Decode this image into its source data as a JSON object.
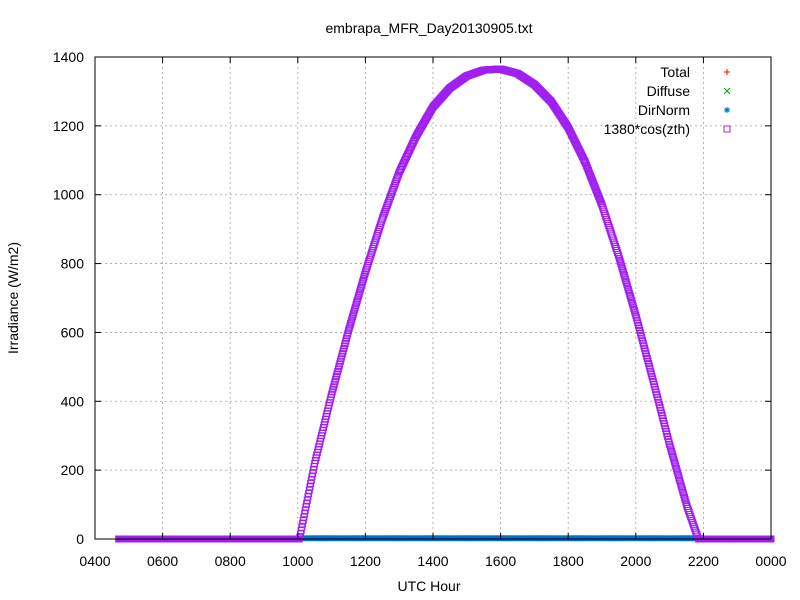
{
  "chart_data": {
    "type": "scatter",
    "title": "embrapa_MFR_Day20130905.txt",
    "xlabel": "UTC Hour",
    "ylabel": "Irradiance (W/m2)",
    "xlim": [
      4,
      24
    ],
    "ylim": [
      0,
      1400
    ],
    "x_ticks": [
      4,
      6,
      8,
      10,
      12,
      14,
      16,
      18,
      20,
      22,
      24
    ],
    "x_tick_labels": [
      "0400",
      "0600",
      "0800",
      "1000",
      "1200",
      "1400",
      "1600",
      "1800",
      "2000",
      "2200",
      "0000"
    ],
    "y_ticks": [
      0,
      200,
      400,
      600,
      800,
      1000,
      1200,
      1400
    ],
    "y_tick_labels": [
      "0",
      "200",
      "400",
      "600",
      "800",
      "1000",
      "1200",
      "1400"
    ],
    "grid": true,
    "legend_position": "top-right",
    "series": [
      {
        "name": "Total",
        "marker": "plus",
        "color": "#ff0000",
        "x": [],
        "y": []
      },
      {
        "name": "Diffuse",
        "marker": "cross",
        "color": "#00a000",
        "x": [],
        "y": []
      },
      {
        "name": "DirNorm",
        "marker": "star",
        "color": "#0070d0",
        "x_range": [
          4.7,
          24.0
        ],
        "y_typical": 2,
        "y_max": 10
      },
      {
        "name": "1380*cos(zth)",
        "marker": "square",
        "color": "#a020f0",
        "x_range": [
          4.7,
          24.0
        ],
        "curve_points": [
          {
            "x": 4.7,
            "y": 0
          },
          {
            "x": 9.9,
            "y": 0
          },
          {
            "x": 10.05,
            "y": 0
          },
          {
            "x": 10.5,
            "y": 220
          },
          {
            "x": 11.0,
            "y": 420
          },
          {
            "x": 11.5,
            "y": 605
          },
          {
            "x": 12.0,
            "y": 775
          },
          {
            "x": 12.5,
            "y": 930
          },
          {
            "x": 13.0,
            "y": 1065
          },
          {
            "x": 13.5,
            "y": 1170
          },
          {
            "x": 14.0,
            "y": 1255
          },
          {
            "x": 14.5,
            "y": 1310
          },
          {
            "x": 15.0,
            "y": 1345
          },
          {
            "x": 15.5,
            "y": 1362
          },
          {
            "x": 16.0,
            "y": 1365
          },
          {
            "x": 16.5,
            "y": 1352
          },
          {
            "x": 17.0,
            "y": 1320
          },
          {
            "x": 17.5,
            "y": 1270
          },
          {
            "x": 18.0,
            "y": 1195
          },
          {
            "x": 18.5,
            "y": 1095
          },
          {
            "x": 19.0,
            "y": 970
          },
          {
            "x": 19.5,
            "y": 820
          },
          {
            "x": 20.0,
            "y": 650
          },
          {
            "x": 20.5,
            "y": 465
          },
          {
            "x": 21.0,
            "y": 275
          },
          {
            "x": 21.5,
            "y": 100
          },
          {
            "x": 21.85,
            "y": 0
          },
          {
            "x": 24.0,
            "y": 0
          }
        ]
      }
    ]
  }
}
